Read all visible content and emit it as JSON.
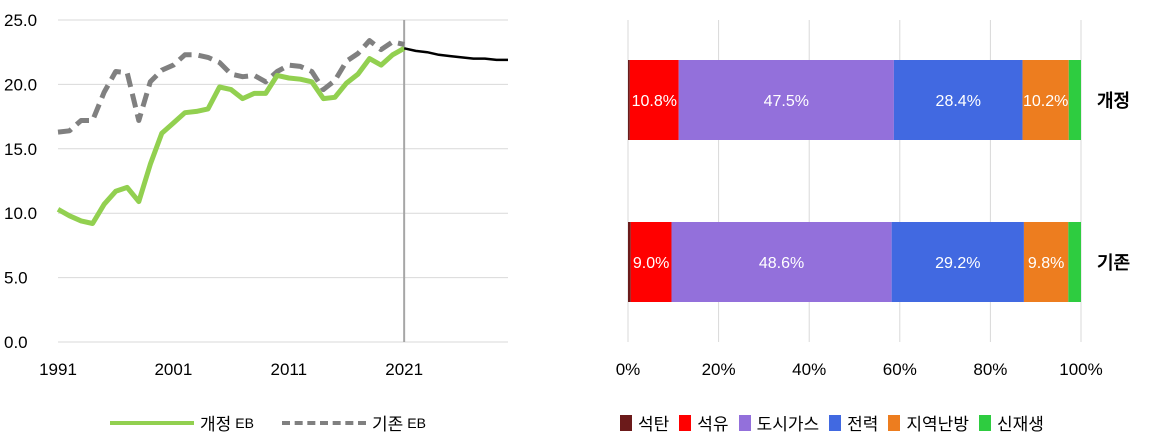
{
  "chart_data": [
    {
      "type": "line",
      "x_range": [
        1991,
        2030
      ],
      "ylim": [
        0,
        25
      ],
      "y_ticks": [
        "0.0",
        "5.0",
        "10.0",
        "15.0",
        "20.0",
        "25.0"
      ],
      "x_ticks": [
        "1991",
        "2001",
        "2011",
        "2021"
      ],
      "vertical_marker_x": 2021,
      "grid": "horizontal",
      "legend_position": "bottom",
      "series": [
        {
          "name": "개정",
          "name_suffix": "EB",
          "color": "#92d050",
          "style": "solid",
          "x": [
            1991,
            1992,
            1993,
            1994,
            1995,
            1996,
            1997,
            1998,
            1999,
            2000,
            2001,
            2002,
            2003,
            2004,
            2005,
            2006,
            2007,
            2008,
            2009,
            2010,
            2011,
            2012,
            2013,
            2014,
            2015,
            2016,
            2017,
            2018,
            2019,
            2020,
            2021
          ],
          "y": [
            10.3,
            9.8,
            9.4,
            9.2,
            10.7,
            11.7,
            12.0,
            10.9,
            13.8,
            16.2,
            17.0,
            17.8,
            17.9,
            18.1,
            19.8,
            19.6,
            18.9,
            19.3,
            19.3,
            20.7,
            20.5,
            20.4,
            20.2,
            18.9,
            19.0,
            20.1,
            20.8,
            22.0,
            21.5,
            22.3,
            22.8
          ]
        },
        {
          "name": "기존",
          "name_suffix": "EB",
          "color": "#808080",
          "style": "dashed",
          "x": [
            1991,
            1992,
            1993,
            1994,
            1995,
            1996,
            1997,
            1998,
            1999,
            2000,
            2001,
            2002,
            2003,
            2004,
            2005,
            2006,
            2007,
            2008,
            2009,
            2010,
            2011,
            2012,
            2013,
            2014,
            2015,
            2016,
            2017,
            2018,
            2019,
            2020,
            2021
          ],
          "y": [
            16.3,
            16.4,
            17.2,
            17.2,
            19.4,
            21.0,
            20.9,
            17.2,
            20.2,
            21.1,
            21.5,
            22.3,
            22.3,
            22.1,
            21.7,
            20.8,
            20.6,
            20.7,
            20.2,
            21.0,
            21.5,
            21.4,
            21.0,
            19.6,
            20.3,
            21.8,
            22.4,
            23.4,
            22.7,
            23.3,
            23.1
          ]
        },
        {
          "name": "",
          "color": "#000000",
          "style": "solid",
          "x": [
            2021,
            2022,
            2023,
            2024,
            2025,
            2026,
            2027,
            2028,
            2029,
            2030
          ],
          "y": [
            22.8,
            22.6,
            22.5,
            22.3,
            22.2,
            22.1,
            22.0,
            22.0,
            21.9,
            21.9
          ]
        }
      ]
    },
    {
      "type": "bar",
      "orientation": "horizontal",
      "stacked": "percent",
      "x_ticks": [
        "0%",
        "20%",
        "40%",
        "60%",
        "80%",
        "100%"
      ],
      "xlim": [
        0,
        100
      ],
      "grid": "vertical",
      "legend_position": "bottom",
      "categories": [
        "개정",
        "기존"
      ],
      "series": [
        {
          "name": "석탄",
          "color": "#6b1a1a",
          "values": [
            0.4,
            0.6
          ],
          "labels": [
            "",
            ""
          ]
        },
        {
          "name": "석유",
          "color": "#ff0000",
          "values": [
            10.8,
            9.0
          ],
          "labels": [
            "10.8%",
            "9.0%"
          ]
        },
        {
          "name": "도시가스",
          "color": "#9370db",
          "values": [
            47.5,
            48.6
          ],
          "labels": [
            "47.5%",
            "48.6%"
          ]
        },
        {
          "name": "전력",
          "color": "#4169e1",
          "values": [
            28.4,
            29.2
          ],
          "labels": [
            "28.4%",
            "29.2%"
          ]
        },
        {
          "name": "지역난방",
          "color": "#ed7d1f",
          "values": [
            10.2,
            9.8
          ],
          "labels": [
            "10.2%",
            "9.8%"
          ]
        },
        {
          "name": "신재생",
          "color": "#2ecc40",
          "values": [
            2.7,
            2.8
          ],
          "labels": [
            "",
            ""
          ]
        }
      ]
    }
  ]
}
